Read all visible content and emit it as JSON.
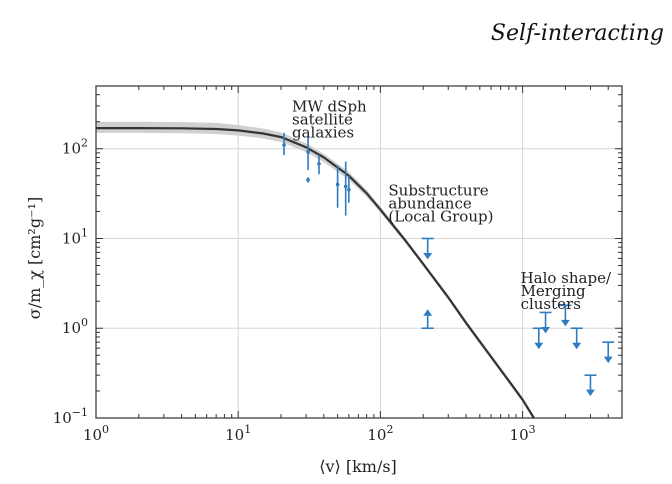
{
  "header": {
    "title": "Self-interacting"
  },
  "chart_data": {
    "type": "line",
    "title": "",
    "xlabel": "⟨v⟩ [km/s]",
    "ylabel": "σ/m_χ [cm²g⁻¹]",
    "xscale": "log",
    "yscale": "log",
    "xlim": [
      1,
      5000
    ],
    "ylim": [
      0.1,
      500
    ],
    "grid": true,
    "x_ticks": [
      {
        "value": 1,
        "base": "10",
        "exp": "0"
      },
      {
        "value": 10,
        "base": "10",
        "exp": "1"
      },
      {
        "value": 100,
        "base": "10",
        "exp": "2"
      },
      {
        "value": 1000,
        "base": "10",
        "exp": "3"
      }
    ],
    "y_ticks": [
      {
        "value": 0.1,
        "base": "10",
        "exp": "−1"
      },
      {
        "value": 1,
        "base": "10",
        "exp": "0"
      },
      {
        "value": 10,
        "base": "10",
        "exp": "1"
      },
      {
        "value": 100,
        "base": "10",
        "exp": "2"
      }
    ],
    "curve": {
      "color": "#333333",
      "band_color": "#c8c8c8",
      "x": [
        1,
        2,
        4,
        7,
        10,
        15,
        20,
        30,
        40,
        60,
        80,
        100,
        150,
        200,
        300,
        400,
        600,
        800,
        1000,
        1200
      ],
      "y": [
        170,
        170,
        169,
        166,
        160,
        148,
        135,
        104,
        80,
        50,
        32,
        21,
        9.5,
        5.2,
        2.2,
        1.15,
        0.48,
        0.26,
        0.16,
        0.1
      ],
      "band_low": [
        150,
        150,
        149,
        146,
        140,
        130,
        119,
        92,
        71,
        45,
        29,
        19.5,
        8.9,
        4.9,
        2.08,
        1.08,
        0.45,
        0.245,
        0.15,
        0.094
      ],
      "band_high": [
        200,
        200,
        198,
        194,
        184,
        168,
        152,
        115,
        88,
        55,
        35,
        22.5,
        10.1,
        5.5,
        2.35,
        1.22,
        0.51,
        0.275,
        0.17,
        0.106
      ]
    },
    "data_color": "#2f7bbf",
    "error_bars": [
      {
        "x": 21,
        "y": 110,
        "ylow": 85,
        "yhigh": 150
      },
      {
        "x": 31,
        "y": 92,
        "ylow": 58,
        "yhigh": 135
      },
      {
        "x": 31,
        "y": 45,
        "ylow": 42,
        "yhigh": 48
      },
      {
        "x": 37,
        "y": 68,
        "ylow": 52,
        "yhigh": 85
      },
      {
        "x": 50,
        "y": 40,
        "ylow": 22,
        "yhigh": 65
      },
      {
        "x": 57,
        "y": 38,
        "ylow": 18,
        "yhigh": 72
      },
      {
        "x": 60,
        "y": 35,
        "ylow": 25,
        "yhigh": 50
      }
    ],
    "upper_limits": [
      {
        "x": 215,
        "y": 10
      },
      {
        "x": 1300,
        "y": 1.0
      },
      {
        "x": 1450,
        "y": 1.5
      },
      {
        "x": 2000,
        "y": 1.8
      },
      {
        "x": 2400,
        "y": 1.0
      },
      {
        "x": 3000,
        "y": 0.3
      },
      {
        "x": 4000,
        "y": 0.7
      }
    ],
    "lower_limits": [
      {
        "x": 215,
        "y": 1.0
      }
    ],
    "annotations": [
      {
        "lines": [
          "MW dSph",
          "satellite",
          "galaxies"
        ],
        "x": 21,
        "y": 260
      },
      {
        "lines": [
          "Substructure",
          "abundance",
          "(Local Group)"
        ],
        "x": 100,
        "y": 30
      },
      {
        "lines": [
          "Halo shape/",
          "Merging",
          "clusters"
        ],
        "x": 850,
        "y": 3.2
      }
    ]
  }
}
